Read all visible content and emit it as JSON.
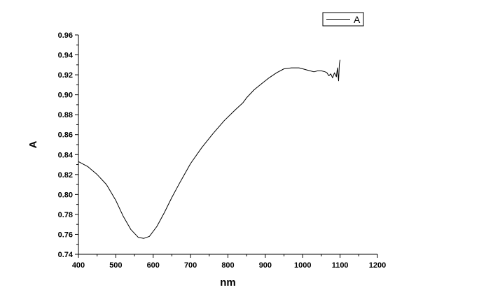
{
  "chart_data": {
    "type": "line",
    "title": "",
    "xlabel": "nm",
    "ylabel": "A",
    "xlim": [
      400,
      1200
    ],
    "ylim": [
      0.74,
      0.96
    ],
    "x_ticks": [
      400,
      500,
      600,
      700,
      800,
      900,
      1000,
      1100,
      1200
    ],
    "x_tick_labels": [
      "400",
      "500",
      "600",
      "700",
      "800",
      "900",
      "1000",
      "1100",
      "1200"
    ],
    "y_ticks": [
      0.74,
      0.76,
      0.78,
      0.8,
      0.82,
      0.84,
      0.86,
      0.88,
      0.9,
      0.92,
      0.94,
      0.96
    ],
    "y_tick_labels": [
      "0.74",
      "0.76",
      "0.78",
      "0.80",
      "0.82",
      "0.84",
      "0.86",
      "0.88",
      "0.90",
      "0.92",
      "0.94",
      "0.96"
    ],
    "grid": false,
    "legend_position": "top-right",
    "series": [
      {
        "name": "A",
        "color": "#000000",
        "x": [
          400,
          425,
          450,
          475,
          500,
          520,
          540,
          560,
          575,
          590,
          610,
          630,
          650,
          670,
          700,
          730,
          760,
          790,
          820,
          840,
          850,
          870,
          890,
          910,
          930,
          950,
          970,
          990,
          1000,
          1010,
          1020,
          1030,
          1040,
          1050,
          1060,
          1065,
          1070,
          1075,
          1080,
          1085,
          1090,
          1093,
          1096,
          1098,
          1100
        ],
        "y": [
          0.833,
          0.828,
          0.82,
          0.81,
          0.794,
          0.778,
          0.765,
          0.757,
          0.756,
          0.758,
          0.768,
          0.782,
          0.797,
          0.811,
          0.831,
          0.847,
          0.861,
          0.874,
          0.885,
          0.892,
          0.897,
          0.905,
          0.911,
          0.917,
          0.922,
          0.926,
          0.927,
          0.927,
          0.926,
          0.925,
          0.924,
          0.923,
          0.924,
          0.924,
          0.923,
          0.922,
          0.919,
          0.921,
          0.917,
          0.922,
          0.918,
          0.927,
          0.914,
          0.931,
          0.935
        ]
      }
    ]
  }
}
